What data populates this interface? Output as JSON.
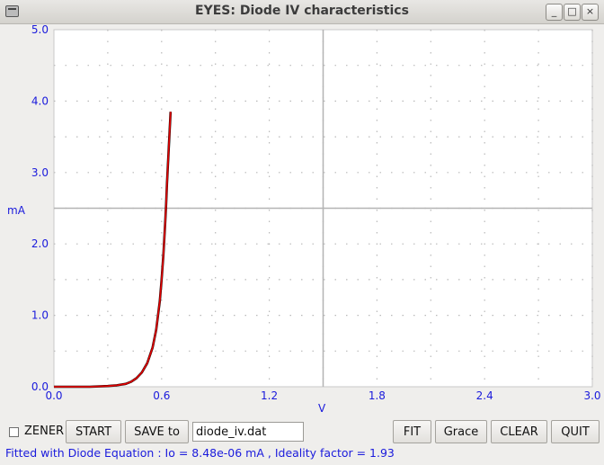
{
  "window": {
    "title": "EYES: Diode IV characteristics",
    "minimize_label": "_",
    "maximize_label": "□",
    "close_label": "×"
  },
  "chart_data": {
    "type": "line",
    "title": "",
    "xlabel": "V",
    "ylabel": "mA",
    "xlim": [
      0.0,
      3.0
    ],
    "ylim": [
      0.0,
      5.0
    ],
    "x_ticks": [
      "0.0",
      "0.6",
      "1.2",
      "1.8",
      "2.4",
      "3.0"
    ],
    "y_ticks": [
      "0.0",
      "1.0",
      "2.0",
      "3.0",
      "4.0",
      "5.0"
    ],
    "grid": "dotted",
    "crosshair": {
      "x": 1.5,
      "y": 2.5
    },
    "series": [
      {
        "color": "#000000",
        "x": [
          0.0,
          0.1,
          0.2,
          0.3,
          0.35,
          0.4,
          0.43,
          0.46,
          0.49,
          0.52,
          0.55,
          0.57,
          0.59,
          0.6,
          0.61,
          0.62,
          0.625,
          0.63,
          0.64,
          0.65
        ],
        "y": [
          0.0,
          0.0,
          0.0,
          0.01,
          0.02,
          0.04,
          0.07,
          0.12,
          0.2,
          0.33,
          0.55,
          0.8,
          1.2,
          1.5,
          1.85,
          2.3,
          2.55,
          2.85,
          3.35,
          3.85
        ]
      },
      {
        "color": "#dd0000",
        "x": [
          0.0,
          0.1,
          0.2,
          0.3,
          0.35,
          0.4,
          0.43,
          0.46,
          0.49,
          0.52,
          0.55,
          0.57,
          0.59,
          0.6,
          0.61,
          0.62,
          0.625,
          0.63,
          0.64,
          0.65
        ],
        "y": [
          0.0,
          0.0,
          0.0,
          0.01,
          0.02,
          0.04,
          0.07,
          0.12,
          0.2,
          0.33,
          0.55,
          0.8,
          1.2,
          1.5,
          1.85,
          2.3,
          2.55,
          2.85,
          3.35,
          3.85
        ]
      }
    ]
  },
  "controls": {
    "zener_label": "ZENER",
    "start_label": "START",
    "save_label": "SAVE to",
    "filename_value": "diode_iv.dat",
    "fit_label": "FIT",
    "grace_label": "Grace",
    "clear_label": "CLEAR",
    "quit_label": "QUIT"
  },
  "status": {
    "text": "Fitted with Diode Equation : Io = 8.48e-06 mA , Ideality factor =  1.93"
  },
  "colors": {
    "axis_label": "#1a1adc",
    "fit_curve": "#dd0000",
    "data_curve": "#000000",
    "crosshair": "#b4b4b4"
  }
}
